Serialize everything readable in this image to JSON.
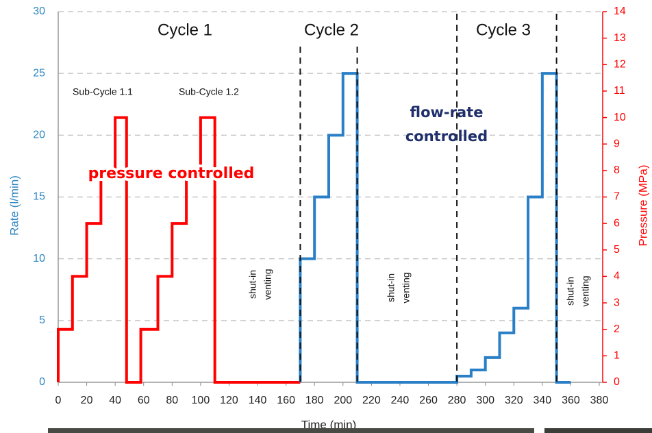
{
  "chart_data": {
    "type": "line",
    "xlabel": "Time (min)",
    "ylabel": "Rate (l/min)",
    "y2label": "Pressure (MPa)",
    "xlim": [
      0,
      380
    ],
    "xticks": [
      0,
      20,
      40,
      60,
      80,
      100,
      120,
      140,
      160,
      180,
      200,
      220,
      240,
      260,
      280,
      300,
      320,
      340,
      360,
      380
    ],
    "ylim": [
      0,
      30
    ],
    "yticks": [
      0,
      5,
      10,
      15,
      20,
      25,
      30
    ],
    "y2lim": [
      0,
      14
    ],
    "y2ticks": [
      0,
      1,
      2,
      3,
      4,
      5,
      6,
      7,
      8,
      9,
      10,
      11,
      12,
      13,
      14
    ],
    "grid": true,
    "ycolor": "#2e86c1",
    "y2color": "#ff0000",
    "series": [
      {
        "color": "#ff0000",
        "axis": "y2",
        "x": [
          0,
          0,
          10,
          10,
          20,
          20,
          30,
          30,
          40,
          40,
          48,
          48,
          58,
          58,
          70,
          70,
          80,
          80,
          90,
          90,
          100,
          100,
          110,
          110,
          170
        ],
        "values": [
          0,
          2,
          2,
          4,
          4,
          6,
          6,
          8,
          8,
          10,
          10,
          0,
          0,
          2,
          2,
          4,
          4,
          6,
          6,
          8,
          8,
          10,
          10,
          0,
          0
        ]
      },
      {
        "color": "#2a7fc6",
        "axis": "y",
        "x": [
          170,
          170,
          180,
          180,
          190,
          190,
          200,
          200,
          210,
          210,
          280,
          280,
          290,
          290,
          300,
          300,
          310,
          310,
          320,
          320,
          330,
          330,
          340,
          340,
          350,
          350,
          360
        ],
        "values": [
          0,
          10,
          10,
          15,
          15,
          20,
          20,
          25,
          25,
          0,
          0,
          0.5,
          0.5,
          1,
          1,
          2,
          2,
          4,
          4,
          6,
          6,
          15,
          15,
          25,
          25,
          0,
          0
        ]
      }
    ],
    "dividers": [
      170,
      210,
      280,
      350
    ],
    "annotations": [
      "Cycle 1",
      "Cycle 2",
      "Cycle 3",
      "Sub-Cycle 1.1",
      "Sub-Cycle 1.2",
      "pressure controlled",
      "flow-rate",
      "controlled",
      "shut-in",
      "venting",
      "shut-in",
      "venting",
      "shut-in",
      "venting"
    ]
  }
}
